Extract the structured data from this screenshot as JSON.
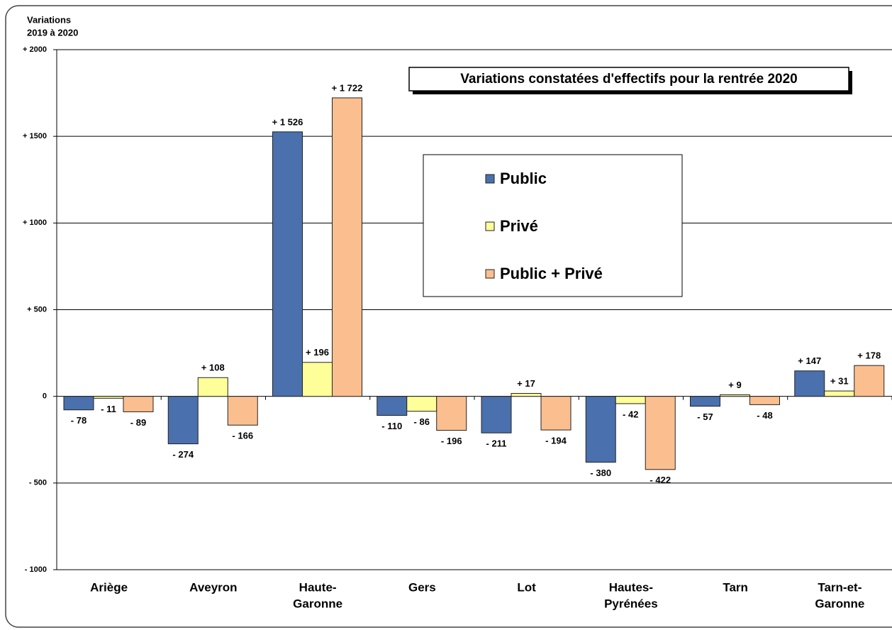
{
  "chart_data": {
    "type": "bar",
    "title": "Variations constatées d'effectifs pour la rentrée 2020",
    "y_label": [
      "Variations",
      "2019 à 2020"
    ],
    "categories": [
      [
        "Ariège"
      ],
      [
        "Aveyron"
      ],
      [
        "Haute-",
        "Garonne"
      ],
      [
        "Gers"
      ],
      [
        "Lot"
      ],
      [
        "Hautes-",
        "Pyrénées"
      ],
      [
        "Tarn"
      ],
      [
        "Tarn-et-",
        "Garonne"
      ]
    ],
    "series": [
      {
        "name": "Public",
        "color": "#4a70ad",
        "values": [
          -78,
          -274,
          1526,
          -110,
          -211,
          -380,
          -57,
          147
        ],
        "value_labels": [
          "- 78",
          "- 274",
          "+ 1 526",
          "- 110",
          "- 211",
          "- 380",
          "- 57",
          "+ 147"
        ]
      },
      {
        "name": "Privé",
        "color": "#ffff99",
        "values": [
          -11,
          108,
          196,
          -86,
          17,
          -42,
          9,
          31
        ],
        "value_labels": [
          "- 11",
          "+ 108",
          "+ 196",
          "- 86",
          "+ 17",
          "- 42",
          "+ 9",
          "+ 31"
        ]
      },
      {
        "name": "Public + Privé",
        "color": "#fbbf8f",
        "values": [
          -89,
          -166,
          1722,
          -196,
          -194,
          -422,
          -48,
          178
        ],
        "value_labels": [
          "- 89",
          "- 166",
          "+ 1 722",
          "- 196",
          "- 194",
          "- 422",
          "- 48",
          "+ 178"
        ]
      }
    ],
    "ylim": [
      -1000,
      2000
    ],
    "yticks": [
      {
        "value": -1000,
        "label": "- 1000"
      },
      {
        "value": -500,
        "label": "- 500"
      },
      0,
      {
        "value": 500,
        "label": "+ 500"
      },
      {
        "value": 1000,
        "label": "+ 1000"
      },
      {
        "value": 1500,
        "label": "+ 1500"
      },
      {
        "value": 2000,
        "label": "+ 2000"
      }
    ],
    "grid": true
  }
}
